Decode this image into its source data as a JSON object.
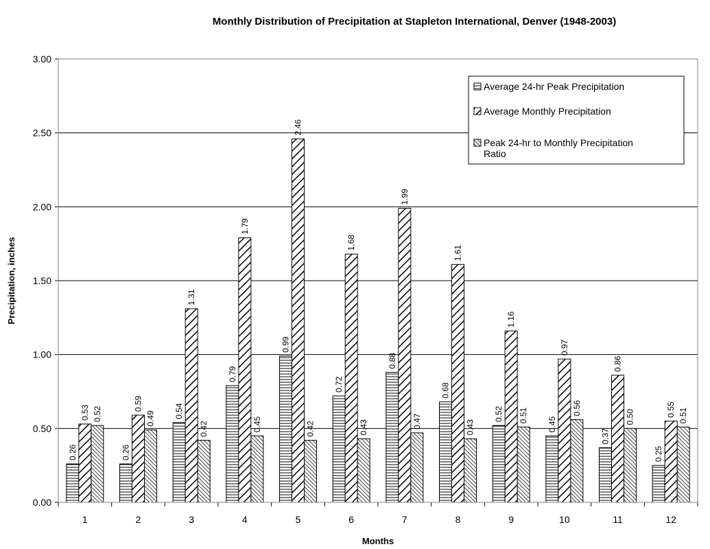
{
  "chart_data": {
    "type": "bar",
    "title": "Monthly Distribution of Precipitation at Stapleton International, Denver (1948-2003)",
    "xlabel": "Months",
    "ylabel": "Precipitation, inches",
    "ylim": [
      0,
      3
    ],
    "yticks": [
      "0.00",
      "0.50",
      "1.00",
      "1.50",
      "2.00",
      "2.50",
      "3.00"
    ],
    "grid": true,
    "legend_position": "top-right",
    "categories": [
      "1",
      "2",
      "3",
      "4",
      "5",
      "6",
      "7",
      "8",
      "9",
      "10",
      "11",
      "12"
    ],
    "series": [
      {
        "name": "Average 24-hr Peak Precipitation",
        "pattern": "horizontal",
        "values": [
          0.26,
          0.26,
          0.54,
          0.79,
          0.99,
          0.72,
          0.88,
          0.68,
          0.52,
          0.45,
          0.37,
          0.25
        ],
        "labels": [
          "0.26",
          "0.26",
          "0.54",
          "0.79",
          "0.99",
          "0.72",
          "0.88",
          "0.68",
          "0.52",
          "0.45",
          "0.37",
          "0.25"
        ]
      },
      {
        "name": "Average Monthly Precipitation",
        "pattern": "wide-diagonal",
        "values": [
          0.53,
          0.59,
          1.31,
          1.79,
          2.46,
          1.68,
          1.99,
          1.61,
          1.16,
          0.97,
          0.86,
          0.55
        ],
        "labels": [
          "0.53",
          "0.59",
          "1.31",
          "1.79",
          "2.46",
          "1.68",
          "1.99",
          "1.61",
          "1.16",
          "0.97",
          "0.86",
          "0.55"
        ]
      },
      {
        "name": "Peak 24-hr to Monthly Precipitation Ratio",
        "pattern": "narrow-diagonal",
        "values": [
          0.52,
          0.49,
          0.42,
          0.45,
          0.42,
          0.43,
          0.47,
          0.43,
          0.51,
          0.56,
          0.5,
          0.51
        ],
        "labels": [
          "0.52",
          "0.49",
          "0.42",
          "0.45",
          "0.42",
          "0.43",
          "0.47",
          "0.43",
          "0.51",
          "0.56",
          "0.50",
          "0.51"
        ]
      }
    ]
  }
}
